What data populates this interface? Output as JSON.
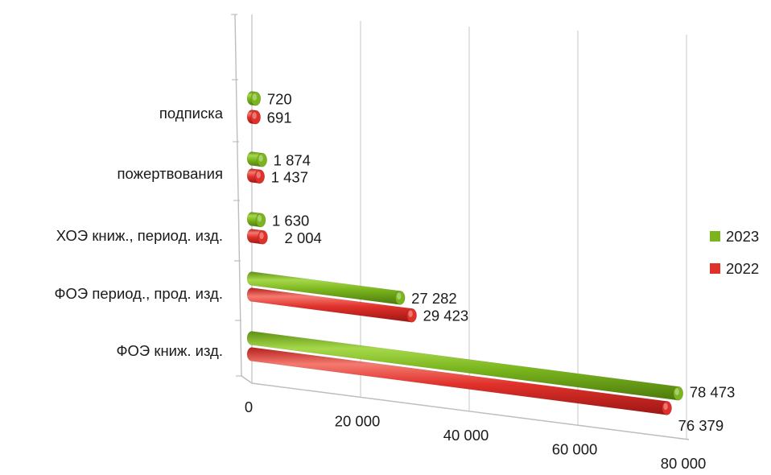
{
  "chart_data": {
    "type": "bar",
    "orientation": "horizontal",
    "style": "3d-cylinder",
    "categories": [
      "ФОЭ книж. изд.",
      "ФОЭ период., прод. изд.",
      "ХОЭ книж., период. изд.",
      "пожертвования",
      "подписка"
    ],
    "series": [
      {
        "name": "2023",
        "color": "#7ab51d",
        "values": [
          78473,
          27282,
          1630,
          1874,
          720
        ],
        "labels": [
          "78 473",
          "27 282",
          "1 630",
          "1 874",
          "720"
        ]
      },
      {
        "name": "2022",
        "color": "#e0302a",
        "values": [
          76379,
          29423,
          2004,
          1437,
          691
        ],
        "labels": [
          "76 379",
          "29 423",
          "2 004",
          "1 437",
          "691"
        ]
      }
    ],
    "xlim": [
      0,
      80000
    ],
    "ticks": [
      0,
      20000,
      40000,
      60000,
      80000
    ],
    "tick_labels": [
      "0",
      "20 000",
      "40 000",
      "60 000",
      "80 000"
    ],
    "title": "",
    "xlabel": "",
    "ylabel": "",
    "grid": true,
    "legend_position": "right"
  }
}
